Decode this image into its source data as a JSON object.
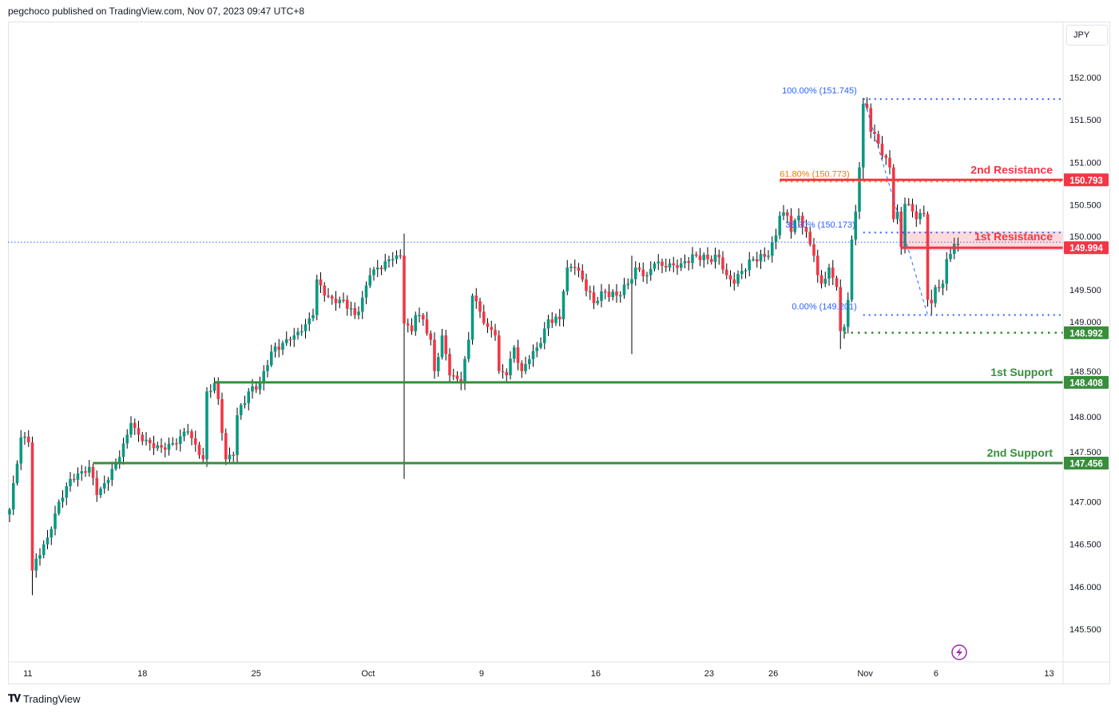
{
  "header": {
    "attribution": "pegchoco published on TradingView.com, Nov 07, 2023 09:47 UTC+8"
  },
  "currency": "JPY",
  "footer": {
    "brand": "TradingView",
    "logo_text": "TV"
  },
  "colors": {
    "up": "#089981",
    "down": "#f23645",
    "resistance": "#f23645",
    "support": "#388e3c",
    "fib_blue": "#2962ff",
    "fib_orange": "#f57c00",
    "last_price_line": "#2962ff"
  },
  "chart_data": {
    "type": "candlestick",
    "symbol_currency": "JPY",
    "ylim": [
      145.3,
      152.5
    ],
    "y_ticks": [
      "152.000",
      "151.500",
      "151.000",
      "150.500",
      "150.000",
      "149.500",
      "149.000",
      "148.500",
      "148.000",
      "147.500",
      "147.000",
      "146.500",
      "146.000",
      "145.500"
    ],
    "x_ticks": [
      {
        "label": "11",
        "bar": 4.8
      },
      {
        "label": "18",
        "bar": 35
      },
      {
        "label": "25",
        "bar": 65
      },
      {
        "label": "Oct",
        "bar": 94.5
      },
      {
        "label": "9",
        "bar": 124.4
      },
      {
        "label": "16",
        "bar": 154.5
      },
      {
        "label": "23",
        "bar": 184.4
      },
      {
        "label": "26",
        "bar": 201.3
      },
      {
        "label": "Nov",
        "bar": 225.5
      },
      {
        "label": "6",
        "bar": 244.2
      },
      {
        "label": "13",
        "bar": 274
      }
    ],
    "bars": 251,
    "first_open": 146.85,
    "close_path": [
      [
        0,
        146.91
      ],
      [
        1,
        147.22
      ],
      [
        3,
        147.76
      ],
      [
        5,
        147.7
      ],
      [
        6,
        146.19
      ],
      [
        7,
        146.33
      ],
      [
        10,
        146.58
      ],
      [
        13,
        147.0
      ],
      [
        16,
        147.27
      ],
      [
        19,
        147.36
      ],
      [
        21,
        147.41
      ],
      [
        23,
        147.08
      ],
      [
        25,
        147.22
      ],
      [
        28,
        147.46
      ],
      [
        31,
        147.79
      ],
      [
        32,
        147.93
      ],
      [
        34,
        147.79
      ],
      [
        37,
        147.69
      ],
      [
        40,
        147.64
      ],
      [
        43,
        147.69
      ],
      [
        47,
        147.83
      ],
      [
        50,
        147.55
      ],
      [
        51,
        147.5
      ],
      [
        52,
        148.3
      ],
      [
        54,
        148.4
      ],
      [
        55,
        148.21
      ],
      [
        57,
        147.5
      ],
      [
        59,
        147.55
      ],
      [
        60,
        148.02
      ],
      [
        63,
        148.3
      ],
      [
        66,
        148.4
      ],
      [
        67,
        148.54
      ],
      [
        69,
        148.77
      ],
      [
        72,
        148.87
      ],
      [
        74,
        148.91
      ],
      [
        77,
        149.01
      ],
      [
        80,
        149.2
      ],
      [
        81,
        149.62
      ],
      [
        83,
        149.43
      ],
      [
        86,
        149.34
      ],
      [
        88,
        149.38
      ],
      [
        91,
        149.2
      ],
      [
        92,
        149.24
      ],
      [
        95,
        149.67
      ],
      [
        97,
        149.76
      ],
      [
        101,
        149.86
      ],
      [
        103,
        149.9
      ],
      [
        104,
        149.1
      ],
      [
        106,
        149.01
      ],
      [
        107,
        149.2
      ],
      [
        109,
        149.15
      ],
      [
        111,
        148.91
      ],
      [
        112,
        148.54
      ],
      [
        114,
        148.96
      ],
      [
        116,
        148.49
      ],
      [
        119,
        148.4
      ],
      [
        121,
        148.91
      ],
      [
        122,
        149.43
      ],
      [
        124,
        149.24
      ],
      [
        126,
        149.06
      ],
      [
        128,
        148.96
      ],
      [
        129,
        148.54
      ],
      [
        131,
        148.49
      ],
      [
        133,
        148.82
      ],
      [
        135,
        148.54
      ],
      [
        137,
        148.68
      ],
      [
        140,
        148.87
      ],
      [
        142,
        149.15
      ],
      [
        145,
        149.15
      ],
      [
        146,
        149.48
      ],
      [
        147,
        149.76
      ],
      [
        149,
        149.76
      ],
      [
        151,
        149.62
      ],
      [
        154,
        149.34
      ],
      [
        156,
        149.48
      ],
      [
        160,
        149.43
      ],
      [
        163,
        149.57
      ],
      [
        165,
        149.76
      ],
      [
        168,
        149.67
      ],
      [
        170,
        149.81
      ],
      [
        173,
        149.76
      ],
      [
        177,
        149.81
      ],
      [
        181,
        149.9
      ],
      [
        184,
        149.86
      ],
      [
        187,
        149.88
      ],
      [
        189,
        149.67
      ],
      [
        191,
        149.57
      ],
      [
        193,
        149.72
      ],
      [
        196,
        149.86
      ],
      [
        200,
        149.9
      ],
      [
        202,
        150.14
      ],
      [
        203,
        150.37
      ],
      [
        205,
        150.37
      ],
      [
        206,
        150.18
      ],
      [
        208,
        150.37
      ],
      [
        210,
        150.18
      ],
      [
        212,
        149.9
      ],
      [
        213,
        149.67
      ],
      [
        214,
        149.57
      ],
      [
        216,
        149.76
      ],
      [
        218,
        149.53
      ],
      [
        219,
        149.01
      ],
      [
        220,
        149.06
      ],
      [
        221,
        149.38
      ],
      [
        222,
        150.09
      ],
      [
        223,
        150.42
      ],
      [
        224,
        150.94
      ],
      [
        225,
        151.69
      ],
      [
        226,
        151.64
      ],
      [
        227,
        151.36
      ],
      [
        229,
        151.22
      ],
      [
        230,
        151.08
      ],
      [
        232,
        150.94
      ],
      [
        233,
        150.33
      ],
      [
        234,
        150.42
      ],
      [
        235,
        150.0
      ],
      [
        236,
        150.51
      ],
      [
        238,
        150.42
      ],
      [
        239,
        150.33
      ],
      [
        241,
        150.39
      ],
      [
        242,
        149.38
      ],
      [
        243,
        149.34
      ],
      [
        244,
        149.53
      ],
      [
        246,
        149.57
      ],
      [
        247,
        149.86
      ],
      [
        249,
        150.04
      ],
      [
        250,
        150.04
      ]
    ],
    "wick_extremes": [
      [
        6,
        147.0,
        145.9
      ],
      [
        104,
        150.16,
        147.27
      ],
      [
        164,
        149.9,
        148.74
      ],
      [
        219,
        149.5,
        148.8
      ],
      [
        225,
        151.745,
        150.8
      ],
      [
        243,
        149.5,
        149.2
      ]
    ],
    "last_price": 150.06,
    "levels": [
      {
        "name": "2nd Resistance",
        "price": 150.793,
        "tag": "150.793",
        "kind": "resistance",
        "from_bar": 203
      },
      {
        "name": "1st Resistance",
        "price": 149.994,
        "tag": "149.994",
        "kind": "resistance",
        "from_bar": 235,
        "zone_top": 150.18
      },
      {
        "name": "",
        "price": 148.992,
        "tag": "148.992",
        "kind": "support-dotted",
        "from_bar": 220
      },
      {
        "name": "1st Support",
        "price": 148.408,
        "tag": "148.408",
        "kind": "support",
        "from_bar": 54
      },
      {
        "name": "2nd Support",
        "price": 147.456,
        "tag": "147.456",
        "kind": "support",
        "from_bar": 22
      }
    ],
    "fibonacci": [
      {
        "label": "100.00% (151.745)",
        "price": 151.745,
        "color": "blue",
        "from_bar": 225
      },
      {
        "label": "61.80% (150.773)",
        "price": 150.773,
        "color": "orange",
        "from_bar": 203
      },
      {
        "label": "38.20% (150.173)",
        "price": 150.173,
        "color": "blue",
        "from_bar": 225
      },
      {
        "label": "0.00% (149.201)",
        "price": 149.201,
        "color": "blue",
        "from_bar": 225
      }
    ],
    "fib_trend": {
      "from": [
        225.5,
        151.7
      ],
      "to": [
        242,
        149.2
      ]
    }
  }
}
